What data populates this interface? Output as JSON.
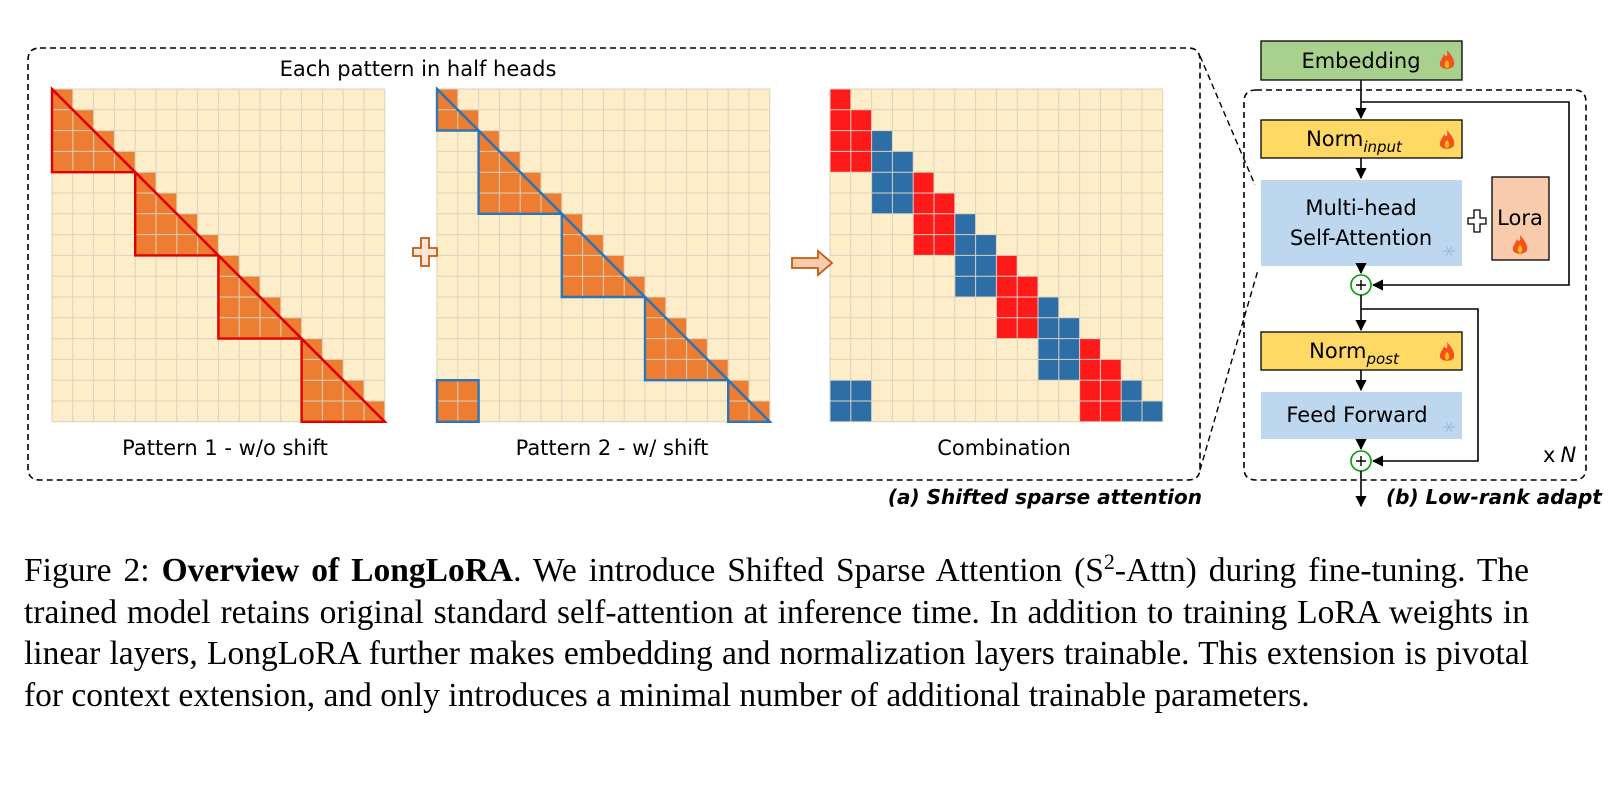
{
  "panel_a": {
    "heading": "Each pattern in half heads",
    "pattern1_label": "Pattern 1 - w/o shift",
    "pattern2_label": "Pattern 2 - w/ shift",
    "combination_label": "Combination",
    "caption": "(a) Shifted sparse attention",
    "grid_size": 16,
    "block_size": 4,
    "colors": {
      "background_cell": "#fdeec9",
      "grid_line": "#d9d2c0",
      "attended": "#ed7d31",
      "pattern1_outline": "#e00000",
      "pattern2_outline": "#2e75b6",
      "combo_red": "#ff1a1a",
      "combo_blue": "#2e6ea6"
    }
  },
  "panel_b": {
    "embedding": "Embedding",
    "norm_input_main": "Norm",
    "norm_input_sub": "input",
    "attention_line1": "Multi-head",
    "attention_line2": "Self-Attention",
    "lora": "Lora",
    "norm_post_main": "Norm",
    "norm_post_sub": "post",
    "feed_forward": "Feed Forward",
    "repeat_x": "x",
    "repeat_n": "N",
    "caption": "(b) Low-rank adapt",
    "colors": {
      "embedding_fill": "#a9d18e",
      "norm_fill": "#ffd966",
      "attention_fill": "#bdd7ee",
      "lora_fill": "#f8cbad",
      "add_circle": "#00a000"
    }
  },
  "caption": {
    "prefix": "Figure 2: ",
    "bold": "Overview of LongLoRA",
    "pre_sup": ". We introduce Shifted Sparse Attention (S",
    "sup": "2",
    "post_sup": "-Attn) during fine-tuning. The trained model retains original standard self-attention at inference time. In addition to training LoRA weights in linear layers, LongLoRA further makes embedding and normalization layers trainable.  This extension is pivotal for context extension, and only introduces a minimal number of additional trainable parameters."
  }
}
